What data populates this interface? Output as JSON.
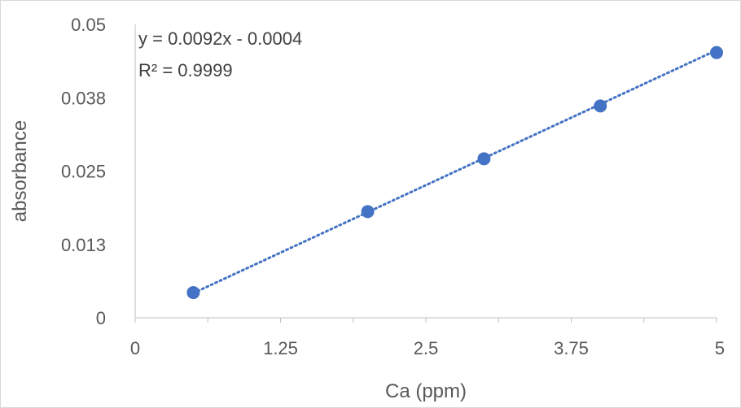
{
  "chart_data": {
    "type": "scatter",
    "title": "",
    "xlabel": "Ca (ppm)",
    "ylabel": "absorbance",
    "xlim": [
      0,
      5
    ],
    "ylim": [
      0,
      0.05
    ],
    "x_ticks": [
      0,
      1.25,
      2.5,
      3.75,
      5
    ],
    "x_tick_labels": [
      "0",
      "1.25",
      "2.5",
      "3.75",
      "5"
    ],
    "y_ticks": [
      0,
      0.0125,
      0.025,
      0.0375,
      0.05
    ],
    "y_tick_labels": [
      "0",
      "0.013",
      "0.025",
      "0.038",
      "0.05"
    ],
    "grid": false,
    "series": [
      {
        "x": [
          0.5,
          2.0,
          3.0,
          4.0,
          5.0
        ],
        "y": [
          0.0043,
          0.0181,
          0.0271,
          0.0361,
          0.0452
        ],
        "color": "#4472c4"
      }
    ],
    "trendline": {
      "type": "linear",
      "slope": 0.0092,
      "intercept": -0.0004,
      "style": "dotted",
      "color": "#4472c4",
      "equation_text": "y = 0.0092x - 0.0004",
      "r2_text": "R² = 0.9999"
    }
  }
}
